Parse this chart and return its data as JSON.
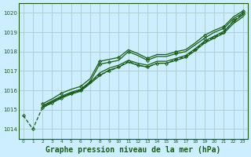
{
  "bg_color": "#cceeff",
  "grid_color": "#aacccc",
  "line_color": "#1a5c1a",
  "xlim": [
    -0.5,
    23.5
  ],
  "ylim": [
    1013.5,
    1020.5
  ],
  "yticks": [
    1014,
    1015,
    1016,
    1017,
    1018,
    1019,
    1020
  ],
  "xticks": [
    0,
    1,
    2,
    3,
    4,
    5,
    6,
    7,
    8,
    9,
    10,
    11,
    12,
    13,
    14,
    15,
    16,
    17,
    18,
    19,
    20,
    21,
    22,
    23
  ],
  "title": "Graphe pression niveau de la mer (hPa)",
  "series": [
    {
      "x": [
        0,
        1,
        2,
        3,
        4,
        5,
        6,
        7,
        8,
        9,
        10,
        11,
        12,
        13,
        14,
        15,
        16,
        17,
        18,
        19,
        20,
        21,
        22,
        23
      ],
      "y": [
        1014.7,
        1014.0,
        1015.1,
        1015.35,
        1015.6,
        1015.85,
        1016.0,
        1016.45,
        1016.8,
        1017.0,
        1017.2,
        1017.5,
        1017.3,
        1017.2,
        1017.4,
        1017.4,
        1017.6,
        1017.75,
        1018.1,
        1018.5,
        1018.75,
        1019.0,
        1019.6,
        1019.95
      ],
      "linestyle": "--",
      "linewidth": 0.9,
      "marker": "D",
      "markersize": 2.0,
      "markevery": [
        0,
        1,
        2,
        3,
        4,
        5,
        6,
        7,
        8,
        9,
        10,
        11,
        12,
        13,
        14,
        15,
        16,
        17,
        18,
        19,
        20,
        21,
        22,
        23
      ]
    },
    {
      "x": [
        2,
        3,
        4,
        5,
        6,
        7,
        8,
        9,
        10,
        11,
        12,
        13,
        14,
        15,
        16,
        17,
        18,
        19,
        20,
        21,
        22,
        23
      ],
      "y": [
        1015.2,
        1015.45,
        1015.7,
        1015.9,
        1016.05,
        1016.45,
        1017.35,
        1017.45,
        1017.55,
        1018.0,
        1017.8,
        1017.55,
        1017.75,
        1017.75,
        1017.9,
        1018.0,
        1018.35,
        1018.7,
        1019.0,
        1019.2,
        1019.7,
        1020.0
      ],
      "linestyle": "-",
      "linewidth": 0.9,
      "marker": "D",
      "markersize": 2.0,
      "markevery": [
        6,
        7,
        9,
        11,
        14,
        17,
        19,
        21
      ]
    },
    {
      "x": [
        2,
        3,
        4,
        5,
        6,
        7,
        8,
        9,
        10,
        11,
        12,
        13,
        14,
        15,
        16,
        17,
        18,
        19,
        20,
        21,
        22,
        23
      ],
      "y": [
        1015.15,
        1015.4,
        1015.65,
        1015.85,
        1016.0,
        1016.4,
        1016.9,
        1017.15,
        1017.3,
        1017.55,
        1017.4,
        1017.3,
        1017.5,
        1017.5,
        1017.65,
        1017.8,
        1018.15,
        1018.55,
        1018.8,
        1019.05,
        1019.55,
        1019.9
      ],
      "linestyle": "-",
      "linewidth": 0.9,
      "marker": null,
      "markersize": 0,
      "markevery": []
    },
    {
      "x": [
        2,
        3,
        4,
        5,
        6,
        7,
        8,
        9,
        10,
        11,
        12,
        13,
        14,
        15,
        16,
        17,
        18,
        19,
        20,
        21,
        22,
        23
      ],
      "y": [
        1015.1,
        1015.35,
        1015.6,
        1015.8,
        1015.95,
        1016.35,
        1016.75,
        1017.05,
        1017.2,
        1017.45,
        1017.3,
        1017.2,
        1017.4,
        1017.4,
        1017.55,
        1017.7,
        1018.05,
        1018.45,
        1018.7,
        1018.95,
        1019.45,
        1019.8
      ],
      "linestyle": "-",
      "linewidth": 0.9,
      "marker": null,
      "markersize": 0,
      "markevery": []
    },
    {
      "x": [
        2,
        3,
        4,
        5,
        6,
        7,
        8,
        9,
        10,
        11,
        12,
        13,
        14,
        15,
        16,
        17,
        18,
        19,
        20,
        21,
        22,
        23
      ],
      "y": [
        1015.3,
        1015.55,
        1015.85,
        1016.05,
        1016.2,
        1016.6,
        1017.5,
        1017.6,
        1017.7,
        1018.1,
        1017.9,
        1017.65,
        1017.85,
        1017.85,
        1018.0,
        1018.1,
        1018.45,
        1018.85,
        1019.1,
        1019.3,
        1019.8,
        1020.1
      ],
      "linestyle": "-",
      "linewidth": 0.9,
      "marker": "D",
      "markersize": 2.0,
      "markevery": [
        0,
        2,
        4,
        6,
        8,
        11,
        14,
        17,
        19,
        21
      ]
    }
  ]
}
